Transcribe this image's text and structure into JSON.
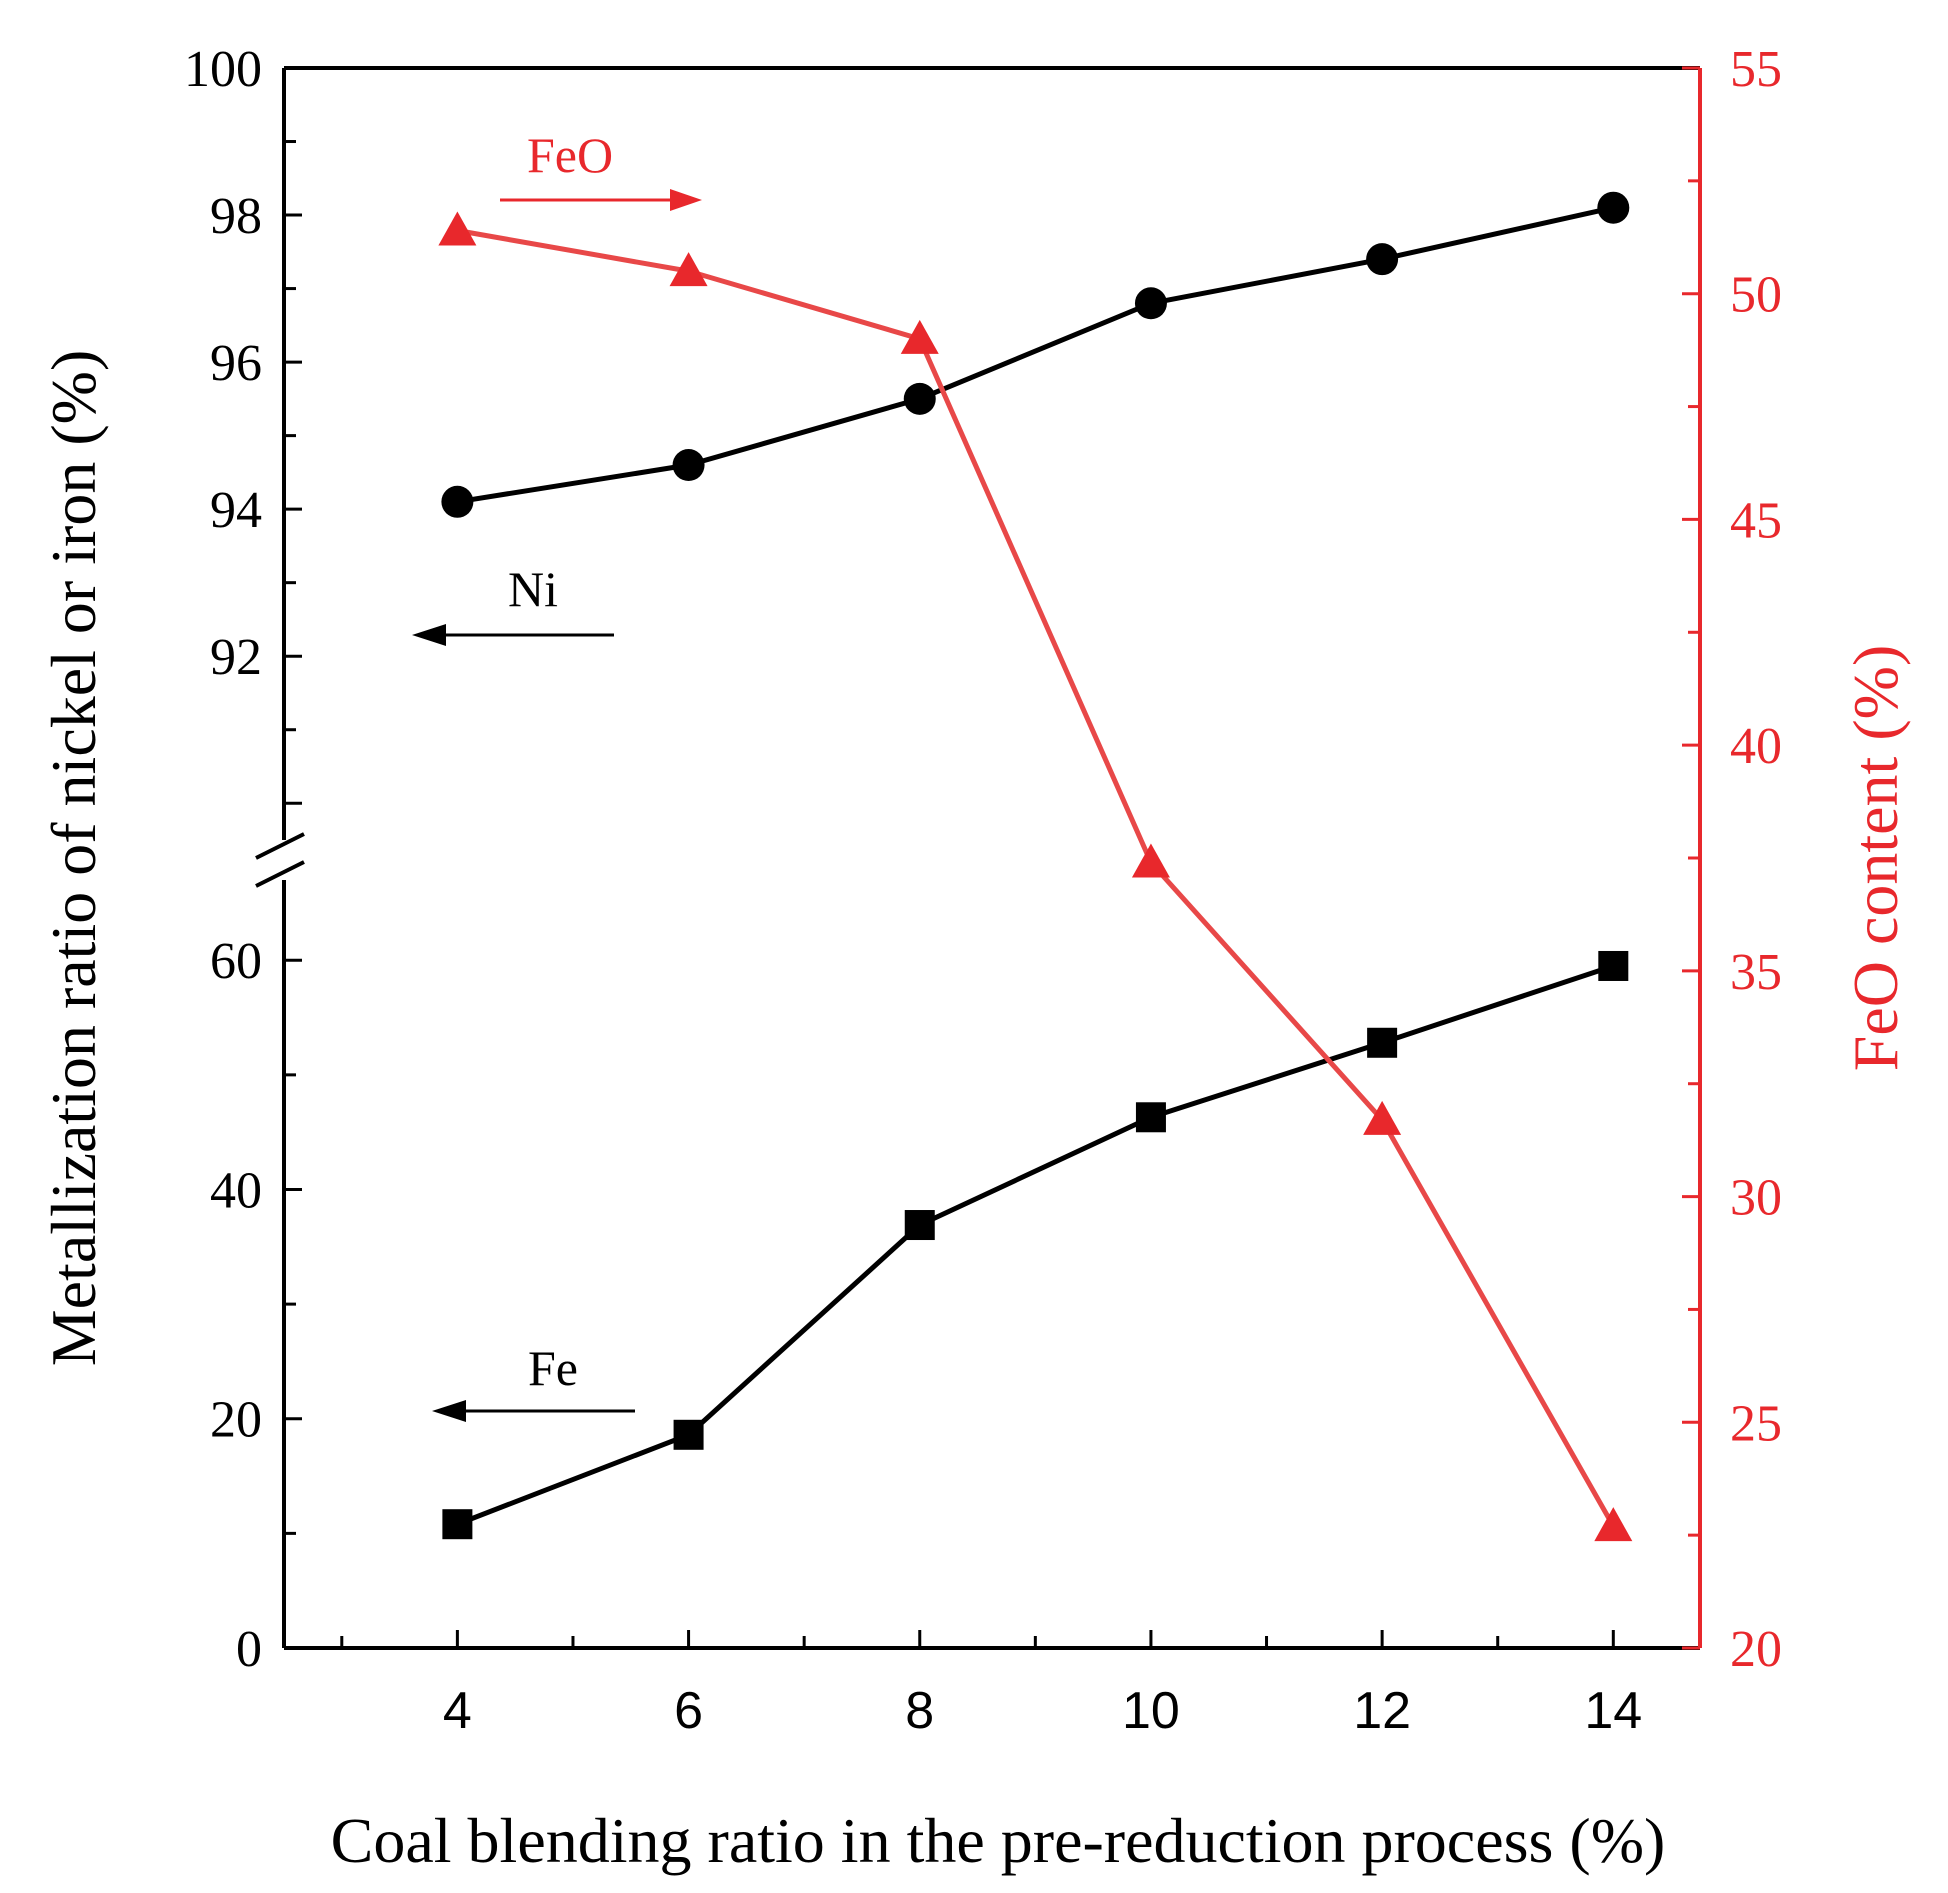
{
  "chart_data": {
    "type": "line",
    "xlabel": "Coal blending ratio in the pre-reduction process (%)",
    "ylabel_left": "Metallization ratio of nickel or iron (%)",
    "ylabel_right": "FeO content (%)",
    "x_ticks": [
      "4",
      "6",
      "8",
      "10",
      "12",
      "14"
    ],
    "xlim": [
      2.5,
      14.75
    ],
    "left_axis_upper": {
      "ylim": [
        89.5,
        100
      ],
      "tick_labels": [
        "92",
        "94",
        "96",
        "98",
        "100"
      ]
    },
    "left_axis_lower": {
      "ylim": [
        0,
        67
      ],
      "tick_labels": [
        "0",
        "20",
        "40",
        "60"
      ]
    },
    "right_axis": {
      "ylim": [
        20,
        55
      ],
      "tick_labels": [
        "20",
        "25",
        "30",
        "35",
        "40",
        "45",
        "50",
        "55"
      ]
    },
    "series": [
      {
        "name": "Ni",
        "axis": "left-upper",
        "marker": "circle",
        "color": "#000000",
        "x": [
          4,
          6,
          8,
          10,
          12,
          14
        ],
        "values": [
          94.1,
          94.6,
          95.5,
          96.8,
          97.4,
          98.1
        ]
      },
      {
        "name": "Fe",
        "axis": "left-lower",
        "marker": "square",
        "color": "#000000",
        "x": [
          4,
          6,
          8,
          10,
          12,
          14
        ],
        "values": [
          10.8,
          18.6,
          36.9,
          46.3,
          52.8,
          59.5
        ]
      },
      {
        "name": "FeO",
        "axis": "right",
        "marker": "triangle",
        "color": "#e8282c",
        "x": [
          4,
          6,
          8,
          10,
          12,
          14
        ],
        "values": [
          51.4,
          50.5,
          49.0,
          37.4,
          31.7,
          22.7
        ]
      }
    ],
    "annotations": [
      {
        "label": "FeO",
        "points_to": "right axis",
        "color": "#e8282c"
      },
      {
        "label": "Ni",
        "points_to": "left axis",
        "color": "#000000"
      },
      {
        "label": "Fe",
        "points_to": "left axis",
        "color": "#000000"
      }
    ],
    "axis_break": "left axis break between 60 and 90",
    "colors": {
      "primary": "#000000",
      "accent": "#e8282c",
      "line_red": "#e84848"
    }
  }
}
